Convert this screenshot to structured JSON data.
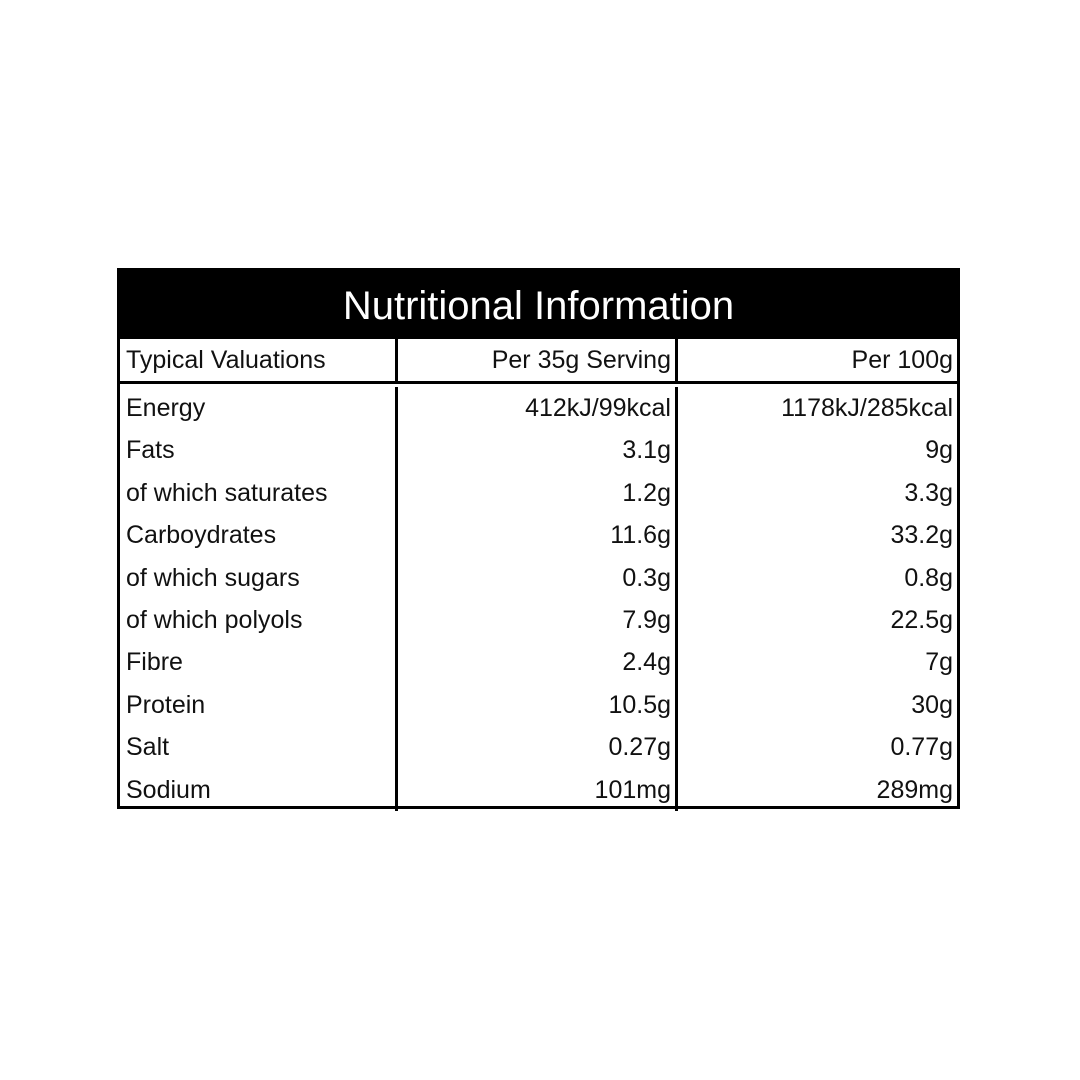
{
  "title": "Nutritional Information",
  "table": {
    "header": [
      "Typical Valuations",
      "Per 35g Serving",
      "Per 100g"
    ],
    "rows": [
      [
        "Energy",
        "412kJ/99kcal",
        "1178kJ/285kcal"
      ],
      [
        "Fats",
        "3.1g",
        "9g"
      ],
      [
        "of which saturates",
        "1.2g",
        "3.3g"
      ],
      [
        "Carboydrates",
        "11.6g",
        "33.2g"
      ],
      [
        "of which sugars",
        "0.3g",
        "0.8g"
      ],
      [
        "of which polyols",
        "7.9g",
        "22.5g"
      ],
      [
        "Fibre",
        "2.4g",
        "7g"
      ],
      [
        "Protein",
        "10.5g",
        "30g"
      ],
      [
        "Salt",
        "0.27g",
        "0.77g"
      ],
      [
        "Sodium",
        "101mg",
        "289mg"
      ]
    ]
  }
}
